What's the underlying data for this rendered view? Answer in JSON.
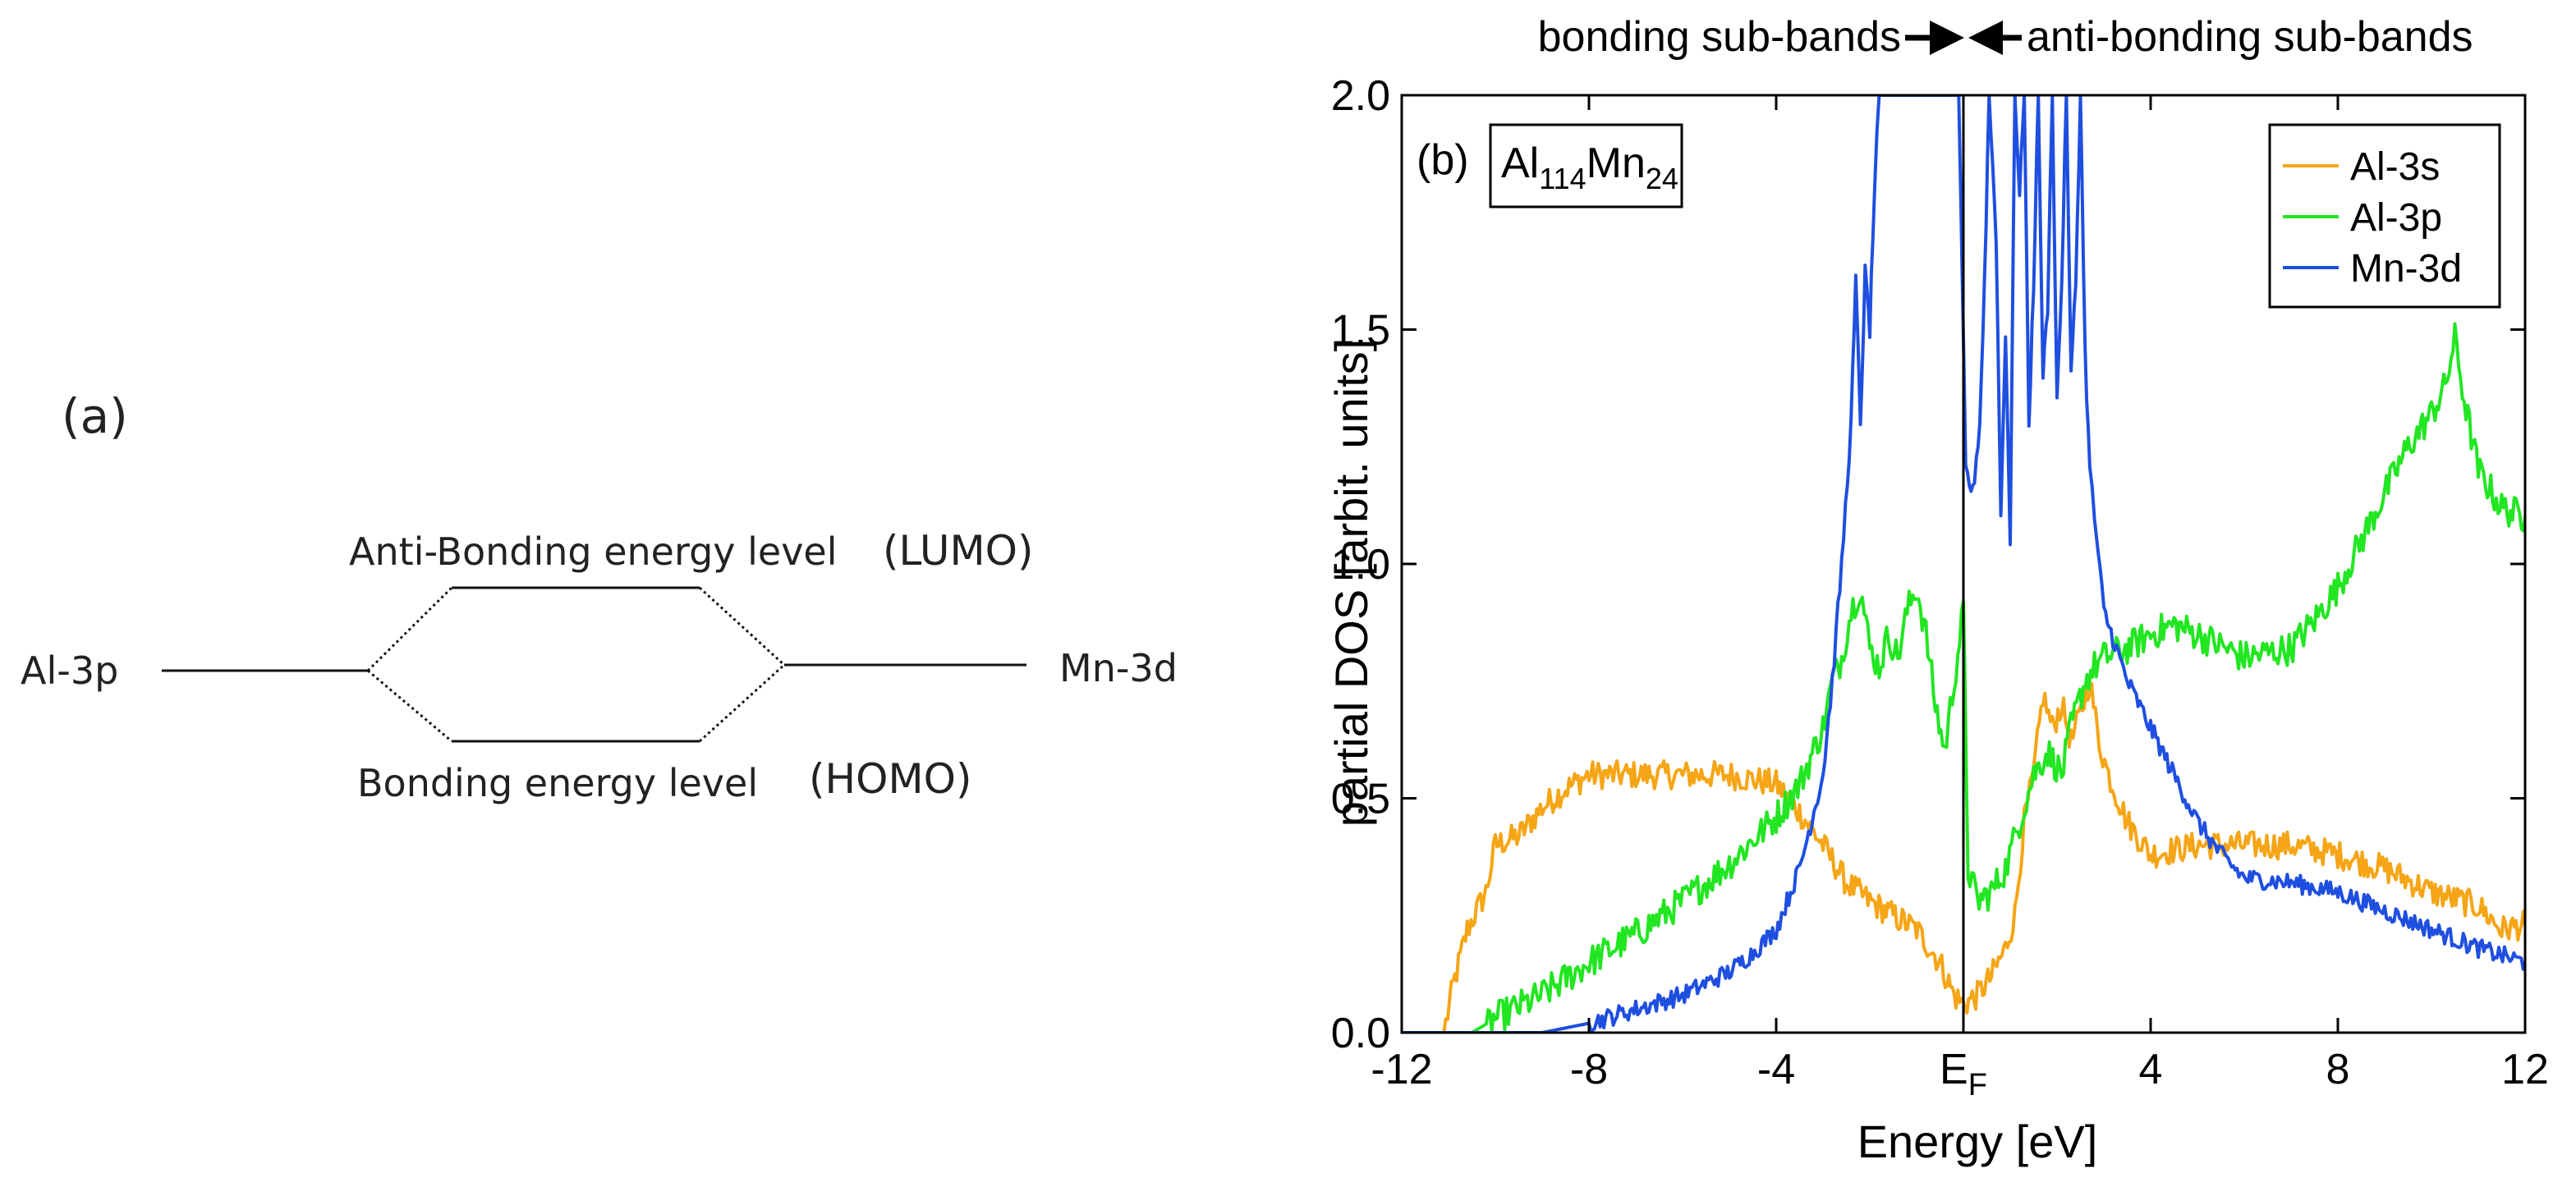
{
  "diagram": {
    "panel_label": "(a)",
    "left_orbital": "Al-3p",
    "right_orbital": "Mn-3d",
    "anti_bonding_label": "Anti-Bonding energy level",
    "lumo_label": "(LUMO)",
    "bonding_label": "Bonding energy level",
    "homo_label": "(HOMO)"
  },
  "chart_data": {
    "type": "line",
    "panel_label": "(b)",
    "compound": {
      "base1": "Al",
      "sub1": "114",
      "base2": "Mn",
      "sub2": "24"
    },
    "top_annotation": {
      "bonding": "bonding sub-bands",
      "anti_bonding": "anti-bonding sub-bands"
    },
    "xlabel": "Energy [eV]",
    "ylabel": "partial DOS [arbit. units]",
    "xlim": [
      -12,
      12
    ],
    "ylim": [
      0,
      2
    ],
    "x_ticks": [
      {
        "value": -12,
        "label": "-12"
      },
      {
        "value": -8,
        "label": "-8"
      },
      {
        "value": -4,
        "label": "-4"
      },
      {
        "value": 0,
        "label": "E",
        "sub": "F"
      },
      {
        "value": 4,
        "label": "4"
      },
      {
        "value": 8,
        "label": "8"
      },
      {
        "value": 12,
        "label": "12"
      }
    ],
    "y_ticks": [
      {
        "value": 0,
        "label": "0.0"
      },
      {
        "value": 0.5,
        "label": "0.5"
      },
      {
        "value": 1.0,
        "label": "1.0"
      },
      {
        "value": 1.5,
        "label": "1.5"
      },
      {
        "value": 2.0,
        "label": "2.0"
      }
    ],
    "fermi_level": 0,
    "legend": {
      "placement": "top-right"
    },
    "series": [
      {
        "name": "Al-3s",
        "color": "#f5a516",
        "noise": 0.03,
        "points": [
          [
            -12,
            0
          ],
          [
            -11.1,
            0
          ],
          [
            -10.9,
            0.1
          ],
          [
            -10.6,
            0.22
          ],
          [
            -10.2,
            0.3
          ],
          [
            -10.0,
            0.4
          ],
          [
            -9.5,
            0.42
          ],
          [
            -9.0,
            0.48
          ],
          [
            -8.5,
            0.52
          ],
          [
            -8.0,
            0.55
          ],
          [
            -7.0,
            0.55
          ],
          [
            -6.0,
            0.55
          ],
          [
            -5.0,
            0.55
          ],
          [
            -4.0,
            0.53
          ],
          [
            -3.5,
            0.47
          ],
          [
            -3.0,
            0.4
          ],
          [
            -2.5,
            0.32
          ],
          [
            -2.0,
            0.28
          ],
          [
            -1.5,
            0.25
          ],
          [
            -1.0,
            0.22
          ],
          [
            -0.5,
            0.15
          ],
          [
            -0.2,
            0.08
          ],
          [
            0,
            0.06
          ],
          [
            0.3,
            0.08
          ],
          [
            0.6,
            0.12
          ],
          [
            0.9,
            0.18
          ],
          [
            1.1,
            0.25
          ],
          [
            1.3,
            0.45
          ],
          [
            1.5,
            0.55
          ],
          [
            1.7,
            0.72
          ],
          [
            1.9,
            0.65
          ],
          [
            2.1,
            0.7
          ],
          [
            2.3,
            0.62
          ],
          [
            2.5,
            0.68
          ],
          [
            2.7,
            0.75
          ],
          [
            2.9,
            0.62
          ],
          [
            3.1,
            0.55
          ],
          [
            3.5,
            0.45
          ],
          [
            4.0,
            0.38
          ],
          [
            5.0,
            0.4
          ],
          [
            6.0,
            0.4
          ],
          [
            7.0,
            0.4
          ],
          [
            8.0,
            0.38
          ],
          [
            9.0,
            0.35
          ],
          [
            10.0,
            0.3
          ],
          [
            11.0,
            0.27
          ],
          [
            11.5,
            0.22
          ],
          [
            12,
            0.23
          ]
        ]
      },
      {
        "name": "Al-3p",
        "color": "#22e622",
        "noise": 0.035,
        "points": [
          [
            -12,
            0
          ],
          [
            -10.5,
            0
          ],
          [
            -10.0,
            0.03
          ],
          [
            -9.0,
            0.08
          ],
          [
            -8.0,
            0.15
          ],
          [
            -7.0,
            0.21
          ],
          [
            -6.0,
            0.28
          ],
          [
            -5.0,
            0.36
          ],
          [
            -4.0,
            0.46
          ],
          [
            -3.5,
            0.53
          ],
          [
            -3.0,
            0.65
          ],
          [
            -2.8,
            0.75
          ],
          [
            -2.6,
            0.8
          ],
          [
            -2.4,
            0.9
          ],
          [
            -2.2,
            0.95
          ],
          [
            -2.0,
            0.82
          ],
          [
            -1.8,
            0.78
          ],
          [
            -1.6,
            0.85
          ],
          [
            -1.4,
            0.8
          ],
          [
            -1.2,
            0.9
          ],
          [
            -1.0,
            0.95
          ],
          [
            -0.8,
            0.85
          ],
          [
            -0.6,
            0.7
          ],
          [
            -0.4,
            0.6
          ],
          [
            -0.2,
            0.75
          ],
          [
            0,
            0.9
          ],
          [
            0.1,
            0.35
          ],
          [
            0.3,
            0.28
          ],
          [
            0.6,
            0.3
          ],
          [
            0.9,
            0.35
          ],
          [
            1.2,
            0.45
          ],
          [
            1.5,
            0.55
          ],
          [
            1.8,
            0.6
          ],
          [
            2.1,
            0.55
          ],
          [
            2.3,
            0.65
          ],
          [
            2.6,
            0.75
          ],
          [
            2.8,
            0.78
          ],
          [
            3.0,
            0.8
          ],
          [
            3.5,
            0.82
          ],
          [
            4.0,
            0.85
          ],
          [
            4.5,
            0.87
          ],
          [
            5.0,
            0.85
          ],
          [
            6.0,
            0.8
          ],
          [
            7.0,
            0.82
          ],
          [
            7.5,
            0.88
          ],
          [
            8.0,
            0.95
          ],
          [
            8.5,
            1.05
          ],
          [
            9.0,
            1.15
          ],
          [
            9.5,
            1.25
          ],
          [
            10.0,
            1.32
          ],
          [
            10.3,
            1.38
          ],
          [
            10.5,
            1.48
          ],
          [
            10.7,
            1.35
          ],
          [
            11.0,
            1.2
          ],
          [
            11.5,
            1.12
          ],
          [
            12,
            1.1
          ]
        ]
      },
      {
        "name": "Mn-3d",
        "color": "#1f4fe0",
        "noise": 0.02,
        "points": [
          [
            -12,
            0
          ],
          [
            -9.0,
            0
          ],
          [
            -8.0,
            0.02
          ],
          [
            -7.0,
            0.05
          ],
          [
            -6.0,
            0.08
          ],
          [
            -5.0,
            0.13
          ],
          [
            -4.5,
            0.17
          ],
          [
            -4.0,
            0.22
          ],
          [
            -3.5,
            0.35
          ],
          [
            -3.0,
            0.55
          ],
          [
            -2.8,
            0.75
          ],
          [
            -2.6,
            1.0
          ],
          [
            -2.4,
            1.3
          ],
          [
            -2.3,
            1.6
          ],
          [
            -2.2,
            1.3
          ],
          [
            -2.1,
            1.62
          ],
          [
            -2.0,
            1.5
          ],
          [
            -1.9,
            1.8
          ],
          [
            -1.8,
            2.0
          ],
          [
            -1.7,
            2.0
          ],
          [
            -0.1,
            2.0
          ],
          [
            0.05,
            1.2
          ],
          [
            0.2,
            1.15
          ],
          [
            0.35,
            1.3
          ],
          [
            0.45,
            1.6
          ],
          [
            0.55,
            2.0
          ],
          [
            0.7,
            1.7
          ],
          [
            0.8,
            1.1
          ],
          [
            0.9,
            1.5
          ],
          [
            1.0,
            1.05
          ],
          [
            1.1,
            2.0
          ],
          [
            1.2,
            1.8
          ],
          [
            1.3,
            2.0
          ],
          [
            1.4,
            1.3
          ],
          [
            1.5,
            1.6
          ],
          [
            1.6,
            2.0
          ],
          [
            1.7,
            1.4
          ],
          [
            1.8,
            1.55
          ],
          [
            1.9,
            2.0
          ],
          [
            2.0,
            1.35
          ],
          [
            2.1,
            1.6
          ],
          [
            2.2,
            2.0
          ],
          [
            2.3,
            1.4
          ],
          [
            2.4,
            1.6
          ],
          [
            2.5,
            2.0
          ],
          [
            2.6,
            1.45
          ],
          [
            2.7,
            1.2
          ],
          [
            2.8,
            1.1
          ],
          [
            3.0,
            0.9
          ],
          [
            3.5,
            0.75
          ],
          [
            4.0,
            0.65
          ],
          [
            4.5,
            0.55
          ],
          [
            5.0,
            0.45
          ],
          [
            5.5,
            0.38
          ],
          [
            6.0,
            0.33
          ],
          [
            7.0,
            0.32
          ],
          [
            8.0,
            0.3
          ],
          [
            9.0,
            0.26
          ],
          [
            10.0,
            0.22
          ],
          [
            11.0,
            0.18
          ],
          [
            12,
            0.15
          ]
        ]
      }
    ]
  }
}
